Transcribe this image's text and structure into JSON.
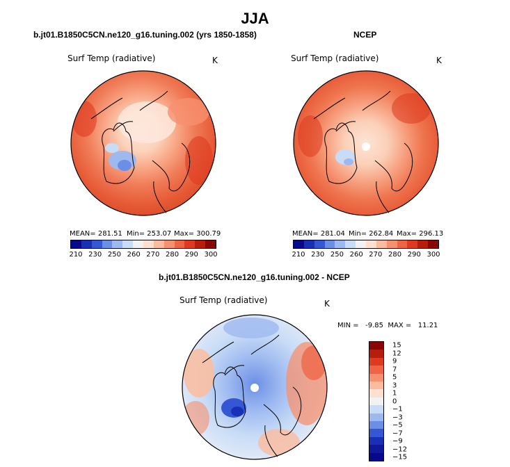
{
  "season": "JJA",
  "panels": {
    "model": {
      "title": "b.jt01.B1850C5CN.ne120_g16.tuning.002 (yrs 1850-1858)",
      "variable": "Surf Temp (radiative)",
      "units": "K",
      "mean_text": "MEAN= 281.51",
      "min_text": "Min= 253.07",
      "max_text": "Max= 300.79"
    },
    "obs": {
      "title": "NCEP",
      "variable": "Surf Temp (radiative)",
      "units": "K",
      "mean_text": "MEAN= 281.04",
      "min_text": "Min= 262.84",
      "max_text": "Max= 296.13"
    },
    "diff": {
      "title": "b.jt01.B1850C5CN.ne120_g16.tuning.002 - NCEP",
      "variable": "Surf Temp (radiative)",
      "units": "K",
      "minmax_text": "MIN =   -9.85  MAX =   11.21"
    }
  },
  "colorbars": {
    "abs_ticks": [
      "210",
      "230",
      "250",
      "260",
      "270",
      "280",
      "290",
      "300"
    ],
    "abs_colors": [
      "#08088a",
      "#1a2fb8",
      "#3557d6",
      "#6c8fe6",
      "#9db9f0",
      "#c8dcf7",
      "#f2f2f2",
      "#fde0d0",
      "#fbbc9e",
      "#f7906e",
      "#ef6444",
      "#dd3b1f",
      "#b71d0d",
      "#8a0505"
    ],
    "diff_ticks": [
      "15",
      "12",
      "9",
      "7",
      "5",
      "3",
      "1",
      "0",
      "−1",
      "−3",
      "−5",
      "−7",
      "−9",
      "−12",
      "−15"
    ],
    "diff_colors": [
      "#8a0505",
      "#b71d0d",
      "#dd3b1f",
      "#ef6444",
      "#f7906e",
      "#fbbc9e",
      "#fde0d0",
      "#f2f2f2",
      "#c8dcf7",
      "#9db9f0",
      "#6c8fe6",
      "#3557d6",
      "#1a2fb8",
      "#10189c",
      "#08088a"
    ]
  },
  "chart_data": [
    {
      "type": "heatmap",
      "title": "b.jt01.B1850C5CN.ne120_g16.tuning.002 (yrs 1850-1858)",
      "subtitle": "Surf Temp (radiative)",
      "units": "K",
      "projection": "north polar stereographic",
      "mean": 281.51,
      "min": 253.07,
      "max": 300.79,
      "contour_levels": [
        210,
        220,
        230,
        240,
        250,
        255,
        260,
        265,
        270,
        275,
        280,
        285,
        290,
        295,
        300
      ]
    },
    {
      "type": "heatmap",
      "title": "NCEP",
      "subtitle": "Surf Temp (radiative)",
      "units": "K",
      "projection": "north polar stereographic",
      "mean": 281.04,
      "min": 262.84,
      "max": 296.13,
      "contour_levels": [
        210,
        220,
        230,
        240,
        250,
        255,
        260,
        265,
        270,
        275,
        280,
        285,
        290,
        295,
        300
      ]
    },
    {
      "type": "heatmap",
      "title": "b.jt01.B1850C5CN.ne120_g16.tuning.002 - NCEP",
      "subtitle": "Surf Temp (radiative)",
      "units": "K",
      "projection": "north polar stereographic",
      "min": -9.85,
      "max": 11.21,
      "contour_levels": [
        -15,
        -12,
        -9,
        -7,
        -5,
        -3,
        -1,
        0,
        1,
        3,
        5,
        7,
        9,
        12,
        15
      ]
    }
  ]
}
